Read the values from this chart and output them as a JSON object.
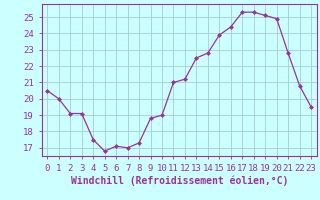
{
  "x": [
    0,
    1,
    2,
    3,
    4,
    5,
    6,
    7,
    8,
    9,
    10,
    11,
    12,
    13,
    14,
    15,
    16,
    17,
    18,
    19,
    20,
    21,
    22,
    23
  ],
  "y": [
    20.5,
    20.0,
    19.1,
    19.1,
    17.5,
    16.8,
    17.1,
    17.0,
    17.3,
    18.8,
    19.0,
    21.0,
    21.2,
    22.5,
    22.8,
    23.9,
    24.4,
    25.3,
    25.3,
    25.1,
    24.9,
    22.8,
    20.8,
    19.5
  ],
  "line_color": "#993399",
  "marker": "D",
  "marker_size": 2.0,
  "bg_color": "#ccffff",
  "grid_color": "#aacccc",
  "xlabel": "Windchill (Refroidissement éolien,°C)",
  "xlabel_fontsize": 7,
  "xtick_labels": [
    "0",
    "1",
    "2",
    "3",
    "4",
    "5",
    "6",
    "7",
    "8",
    "9",
    "10",
    "11",
    "12",
    "13",
    "14",
    "15",
    "16",
    "17",
    "18",
    "19",
    "20",
    "21",
    "22",
    "23"
  ],
  "ytick_vals": [
    17,
    18,
    19,
    20,
    21,
    22,
    23,
    24,
    25
  ],
  "ytick_labels": [
    "17",
    "18",
    "19",
    "20",
    "21",
    "22",
    "23",
    "24",
    "25"
  ],
  "ylim": [
    16.5,
    25.8
  ],
  "xlim": [
    -0.5,
    23.5
  ],
  "tick_color": "#993399",
  "tick_fontsize": 6.5,
  "spine_color": "#993399"
}
